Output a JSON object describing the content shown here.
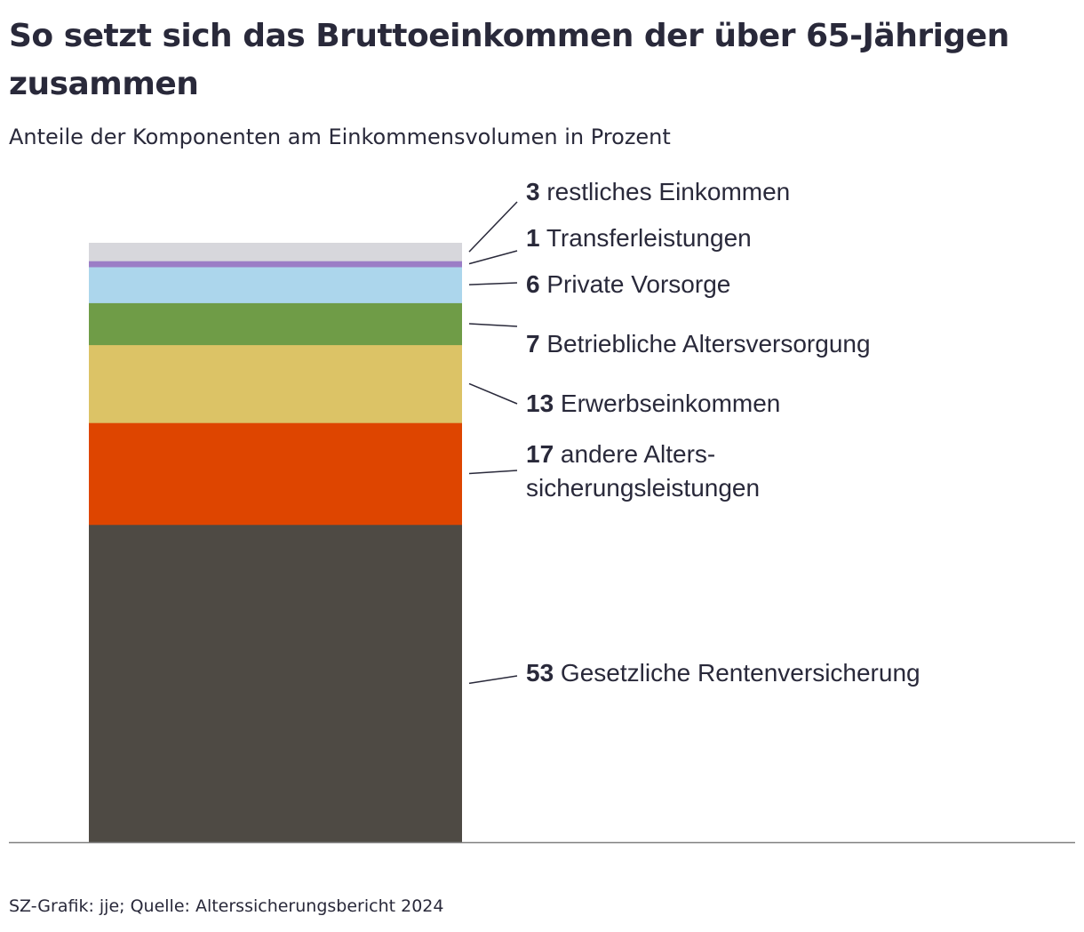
{
  "title": "So setzt sich das Bruttoeinkommen der über 65-Jährigen zusammen",
  "subtitle": "Anteile der Komponenten am Einkommensvolumen in Prozent",
  "source": "SZ-Grafik: jje; Quelle: Alterssicherungsbericht 2024",
  "chart_data": {
    "type": "bar",
    "stacked": true,
    "unit": "Prozent",
    "categories": [
      ""
    ],
    "grid": false,
    "legend": "none",
    "ylim": [
      0,
      100
    ],
    "series": [
      {
        "name": "Gesetzliche Rentenversicherung",
        "values": [
          53
        ],
        "color": "#4e4a44",
        "label_lines": [
          "Gesetzliche Rentenversicherung"
        ]
      },
      {
        "name": "andere Alterssicherungsleistungen",
        "values": [
          17
        ],
        "color": "#de4500",
        "label_lines": [
          "andere Alters-",
          "sicherungsleistungen"
        ]
      },
      {
        "name": "Erwerbseinkommen",
        "values": [
          13
        ],
        "color": "#dcc366",
        "label_lines": [
          "Erwerbseinkommen"
        ]
      },
      {
        "name": "Betriebliche Altersversorgung",
        "values": [
          7
        ],
        "color": "#6f9c47",
        "label_lines": [
          "Betriebliche Altersversorgung"
        ]
      },
      {
        "name": "Private Vorsorge",
        "values": [
          6
        ],
        "color": "#acd6ec",
        "label_lines": [
          "Private Vorsorge"
        ]
      },
      {
        "name": "Transferleistungen",
        "values": [
          1
        ],
        "color": "#9b7dc6",
        "label_lines": [
          "Transferleistungen"
        ]
      },
      {
        "name": "restliches Einkommen",
        "values": [
          3
        ],
        "color": "#d7d7dc",
        "label_lines": [
          "restliches Einkommen"
        ]
      }
    ]
  }
}
